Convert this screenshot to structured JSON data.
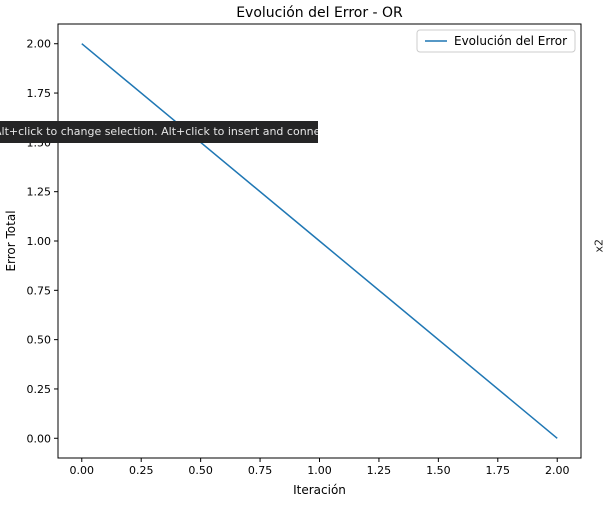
{
  "chart_data": {
    "type": "line",
    "title": "Evolución del Error - OR",
    "xlabel": "Iteración",
    "ylabel": "Error Total",
    "xlim": [
      -0.1,
      2.1
    ],
    "ylim": [
      -0.1,
      2.1
    ],
    "x_ticks": [
      "0.00",
      "0.25",
      "0.50",
      "0.75",
      "1.00",
      "1.25",
      "1.50",
      "1.75",
      "2.00"
    ],
    "y_ticks": [
      "0.00",
      "0.25",
      "0.50",
      "0.75",
      "1.00",
      "1.25",
      "1.50",
      "1.75",
      "2.00"
    ],
    "series": [
      {
        "name": "Evolución del Error",
        "x": [
          0,
          1,
          2
        ],
        "y": [
          2,
          1,
          0
        ],
        "color": "#1f77b4"
      }
    ],
    "legend": "top-right",
    "grid": false
  },
  "tooltip": {
    "text": "Alt+click to change selection. Alt+click to insert and connect."
  },
  "side_label": "x2"
}
